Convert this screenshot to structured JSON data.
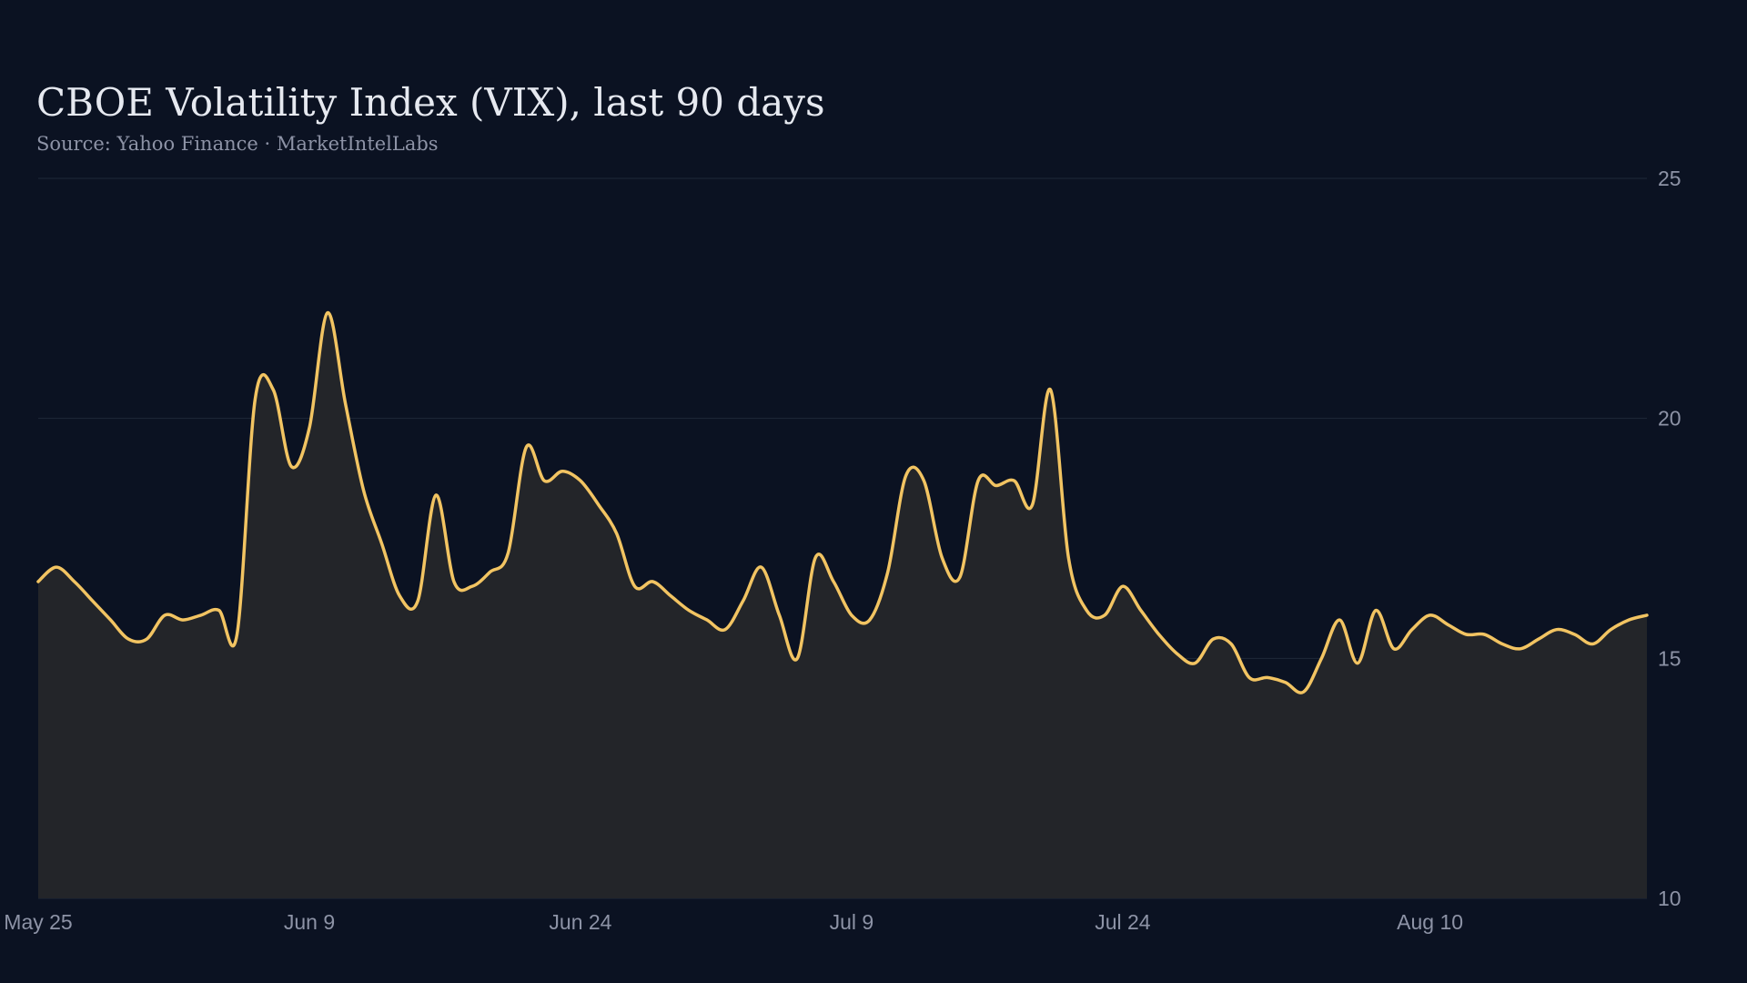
{
  "chart_data": {
    "type": "area",
    "title": "CBOE Volatility Index (VIX), last 90 days",
    "subtitle": "Source: Yahoo Finance · MarketIntelLabs",
    "xlabel": "",
    "ylabel": "",
    "ylim": [
      10,
      25
    ],
    "yticks": [
      10,
      15,
      20,
      25
    ],
    "y_axis_position": "right",
    "grid": "horizontal",
    "legend": "none",
    "x_start": "2025-05-25",
    "x": [
      "May 25",
      "May 26",
      "May 27",
      "May 28",
      "May 29",
      "May 30",
      "May 31",
      "Jun 1",
      "Jun 2",
      "Jun 3",
      "Jun 4",
      "Jun 5",
      "Jun 6",
      "Jun 7",
      "Jun 8",
      "Jun 9",
      "Jun 10",
      "Jun 11",
      "Jun 12",
      "Jun 13",
      "Jun 14",
      "Jun 15",
      "Jun 16",
      "Jun 17",
      "Jun 18",
      "Jun 19",
      "Jun 20",
      "Jun 21",
      "Jun 22",
      "Jun 23",
      "Jun 24",
      "Jun 25",
      "Jun 26",
      "Jun 27",
      "Jun 28",
      "Jun 29",
      "Jun 30",
      "Jul 1",
      "Jul 2",
      "Jul 3",
      "Jul 4",
      "Jul 5",
      "Jul 6",
      "Jul 7",
      "Jul 8",
      "Jul 9",
      "Jul 10",
      "Jul 11",
      "Jul 12",
      "Jul 13",
      "Jul 14",
      "Jul 15",
      "Jul 16",
      "Jul 17",
      "Jul 18",
      "Jul 19",
      "Jul 20",
      "Jul 21",
      "Jul 22",
      "Jul 23",
      "Jul 24",
      "Jul 25",
      "Jul 26",
      "Jul 27",
      "Jul 28",
      "Jul 29",
      "Jul 30",
      "Jul 31",
      "Aug 1",
      "Aug 2",
      "Aug 3",
      "Aug 4",
      "Aug 5",
      "Aug 6",
      "Aug 7",
      "Aug 8",
      "Aug 9",
      "Aug 10",
      "Aug 11",
      "Aug 12",
      "Aug 13",
      "Aug 14",
      "Aug 15",
      "Aug 16",
      "Aug 17",
      "Aug 18",
      "Aug 19",
      "Aug 20",
      "Aug 21",
      "Aug 22"
    ],
    "xticks": [
      {
        "label": "May 25",
        "index": 0
      },
      {
        "label": "Jun  9",
        "index": 15
      },
      {
        "label": "Jun 24",
        "index": 30
      },
      {
        "label": "Jul  9",
        "index": 45
      },
      {
        "label": "Jul 24",
        "index": 60
      },
      {
        "label": "Aug 10",
        "index": 77
      }
    ],
    "series": [
      {
        "color": "#f2c462",
        "fill": "#232529",
        "values": [
          16.6,
          16.9,
          16.6,
          16.2,
          15.8,
          15.4,
          15.4,
          15.9,
          15.8,
          15.9,
          16.0,
          15.5,
          20.4,
          20.6,
          19.0,
          19.8,
          22.2,
          20.3,
          18.5,
          17.4,
          16.3,
          16.2,
          18.4,
          16.6,
          16.5,
          16.8,
          17.2,
          19.4,
          18.7,
          18.9,
          18.7,
          18.2,
          17.6,
          16.5,
          16.6,
          16.3,
          16.0,
          15.8,
          15.6,
          16.2,
          16.9,
          15.9,
          15.0,
          17.1,
          16.6,
          15.9,
          15.8,
          16.8,
          18.8,
          18.7,
          17.1,
          16.7,
          18.7,
          18.6,
          18.7,
          18.2,
          20.6,
          17.1,
          16.0,
          15.9,
          16.5,
          16.0,
          15.5,
          15.1,
          14.9,
          15.4,
          15.3,
          14.6,
          14.6,
          14.5,
          14.3,
          15.0,
          15.8,
          14.9,
          16.0,
          15.2,
          15.6,
          15.9,
          15.7,
          15.5,
          15.5,
          15.3,
          15.2,
          15.4,
          15.6,
          15.5,
          15.3,
          15.6,
          15.8,
          15.9
        ]
      }
    ]
  }
}
